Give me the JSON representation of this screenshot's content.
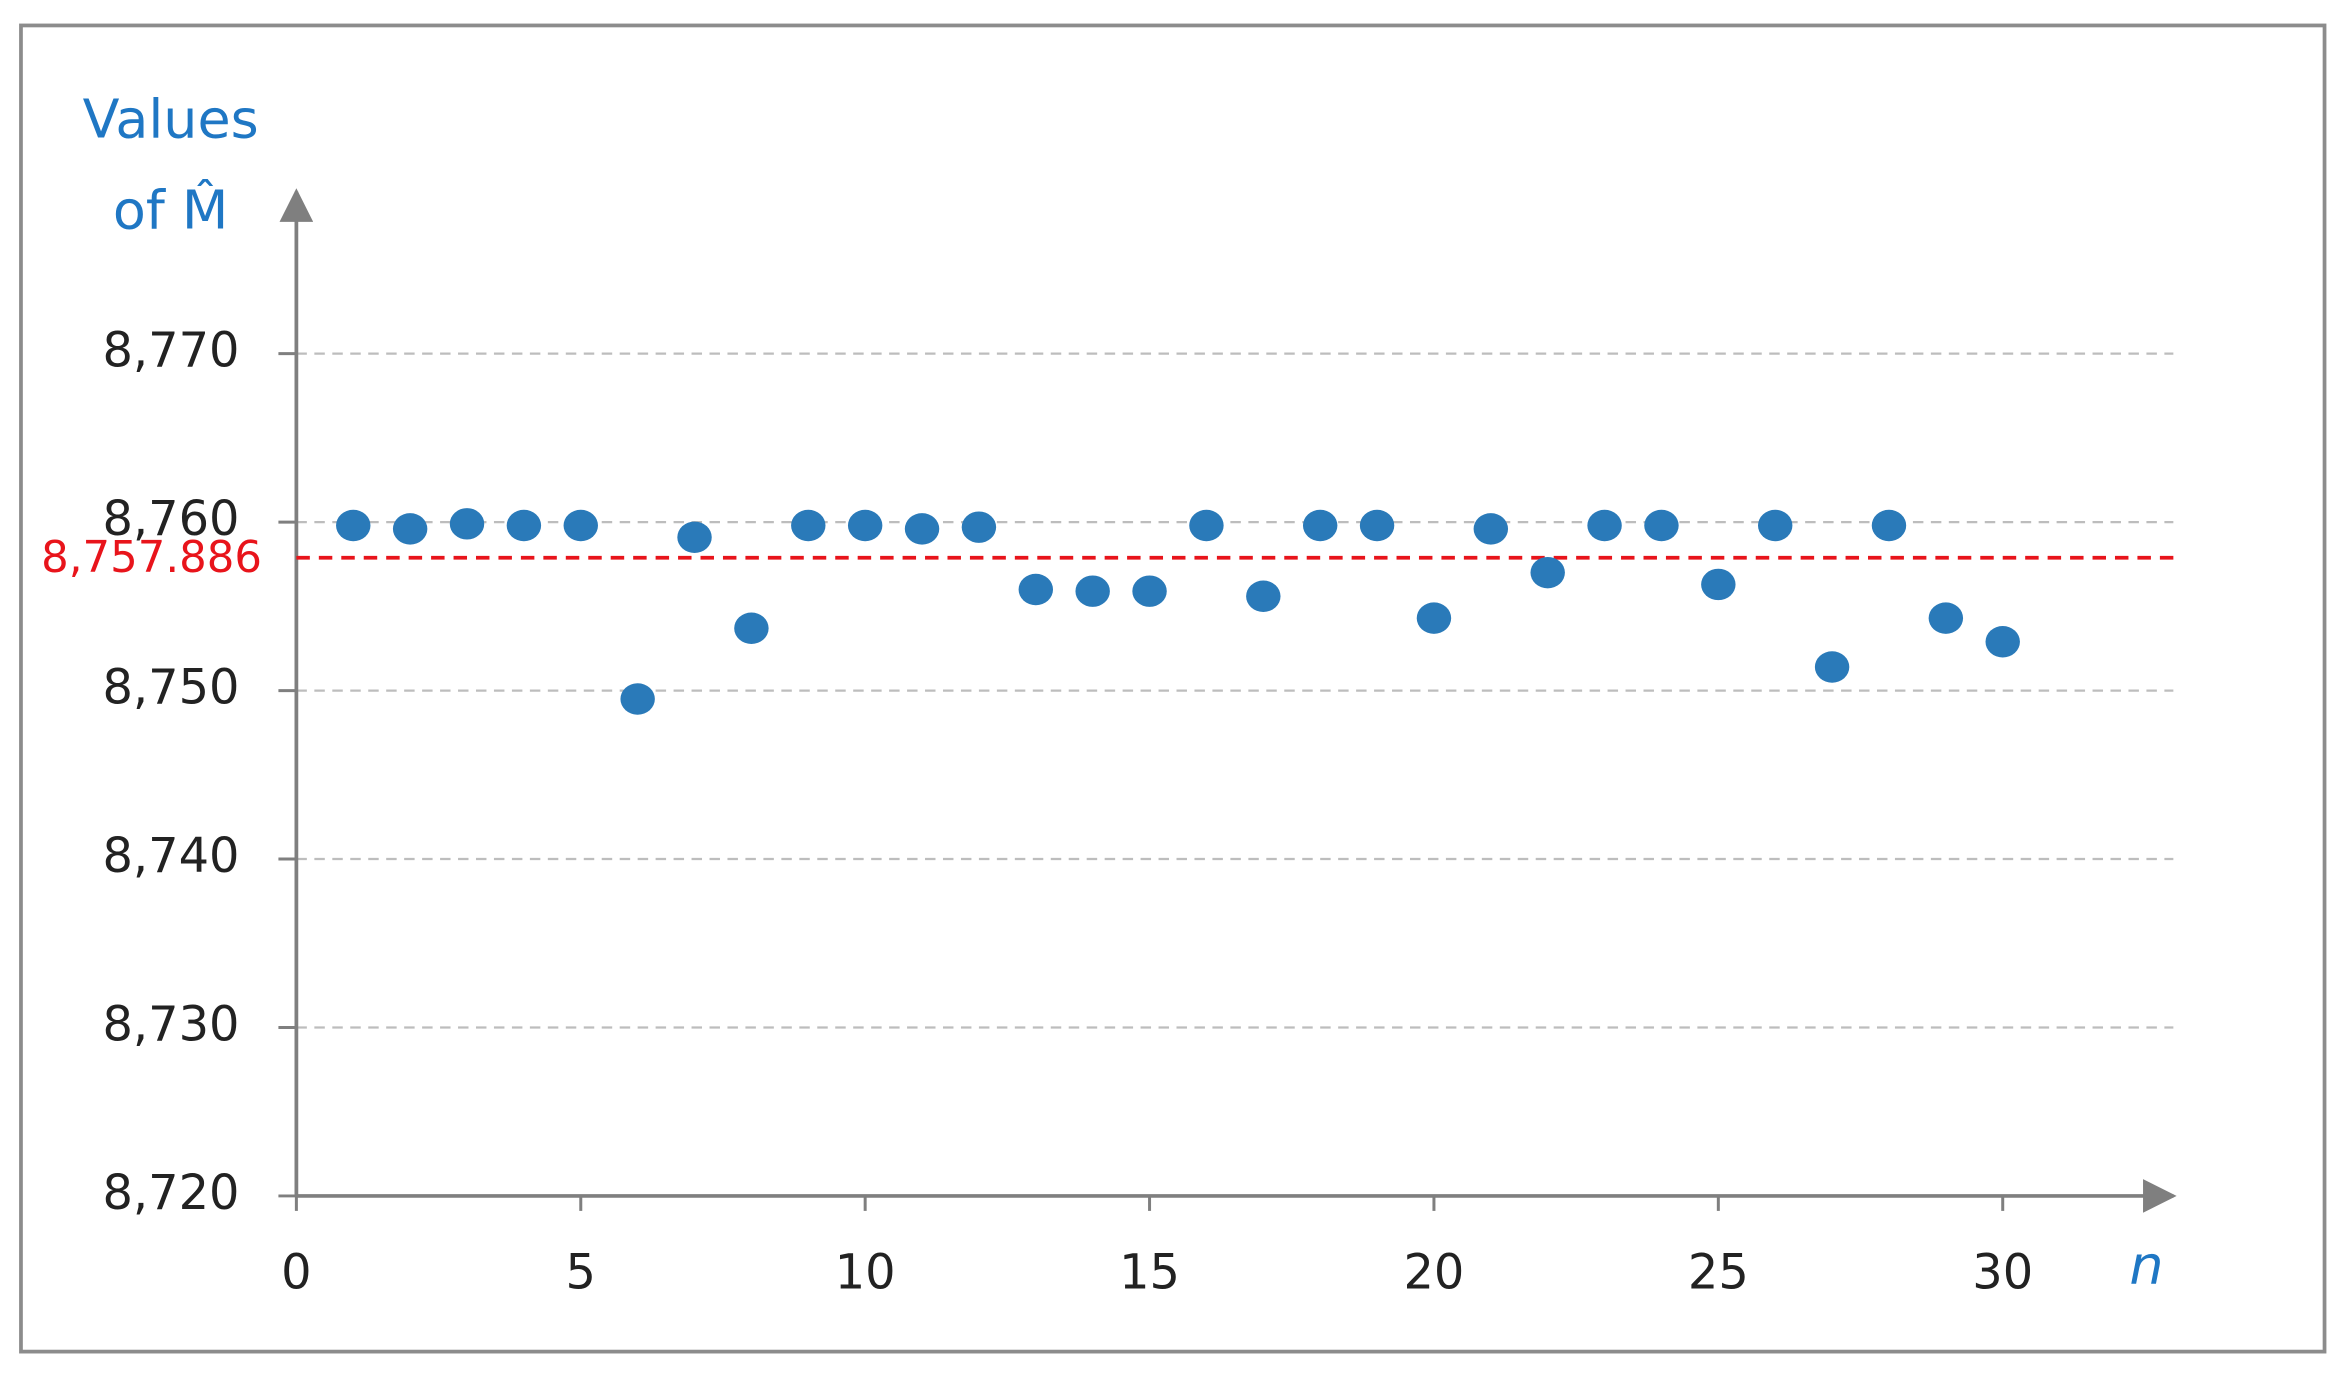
{
  "chart_data": {
    "type": "scatter",
    "y_label": [
      "Values",
      "of M̂"
    ],
    "x_label": "n",
    "x": [
      1,
      2,
      3,
      4,
      5,
      6,
      7,
      8,
      9,
      10,
      11,
      12,
      13,
      14,
      15,
      16,
      17,
      18,
      19,
      20,
      21,
      22,
      23,
      24,
      25,
      26,
      27,
      28,
      29,
      30
    ],
    "series": [
      {
        "color": "#2a7ab9",
        "values": [
          8759.8,
          8759.6,
          8759.9,
          8759.8,
          8759.8,
          8749.5,
          8759.1,
          8753.7,
          8759.8,
          8759.8,
          8759.6,
          8759.7,
          8756.0,
          8755.9,
          8755.9,
          8759.8,
          8755.6,
          8759.8,
          8759.8,
          8754.3,
          8759.6,
          8757.0,
          8759.8,
          8759.8,
          8756.3,
          8759.8,
          8751.4,
          8759.8,
          8754.3,
          8752.9
        ]
      }
    ],
    "xlim": [
      0,
      33
    ],
    "ylim": [
      8720,
      8779
    ],
    "xticks": [
      0,
      5,
      10,
      15,
      20,
      25,
      30
    ],
    "yticks": [
      {
        "value": 8720,
        "label": "8,720"
      },
      {
        "value": 8730,
        "label": "8,730"
      },
      {
        "value": 8740,
        "label": "8,740"
      },
      {
        "value": 8750,
        "label": "8,750"
      },
      {
        "value": 8760,
        "label": "8,760"
      },
      {
        "value": 8770,
        "label": "8,770"
      }
    ],
    "grid": true,
    "reference_line": {
      "value": 8757.886,
      "label": "8,757.886",
      "color": "#e8141b"
    }
  }
}
